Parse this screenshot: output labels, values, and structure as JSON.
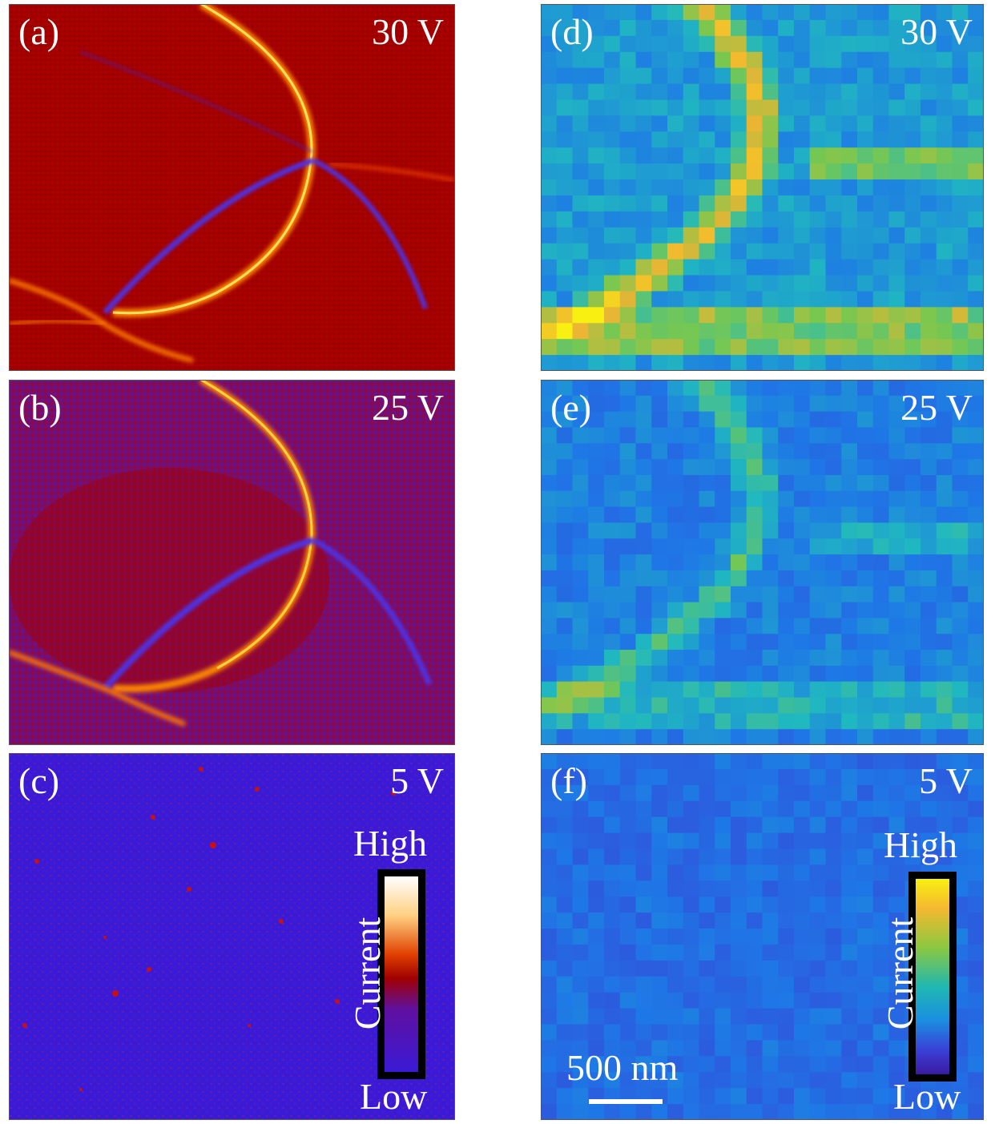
{
  "panels": [
    {
      "id": "a",
      "label": "(a)",
      "voltage": "30 V",
      "style": "hot"
    },
    {
      "id": "b",
      "label": "(b)",
      "voltage": "25 V",
      "style": "hot"
    },
    {
      "id": "c",
      "label": "(c)",
      "voltage": "5 V",
      "style": "hot"
    },
    {
      "id": "d",
      "label": "(d)",
      "voltage": "30 V",
      "style": "parula"
    },
    {
      "id": "e",
      "label": "(e)",
      "voltage": "25 V",
      "style": "parula"
    },
    {
      "id": "f",
      "label": "(f)",
      "voltage": "5 V",
      "style": "parula"
    }
  ],
  "colorbar_left": {
    "high": "High",
    "low": "Low",
    "title": "Current"
  },
  "colorbar_right": {
    "high": "High",
    "low": "Low",
    "title": "Current"
  },
  "scalebar": {
    "label": "500 nm"
  },
  "colors": {
    "hot_low": "#3b1fd0",
    "hot_mid": "#b00000",
    "hot_high": "#fff4c0",
    "parula_low": "#3a3fd6",
    "parula_mid": "#1fb8c0",
    "parula_high": "#f6e51c"
  }
}
